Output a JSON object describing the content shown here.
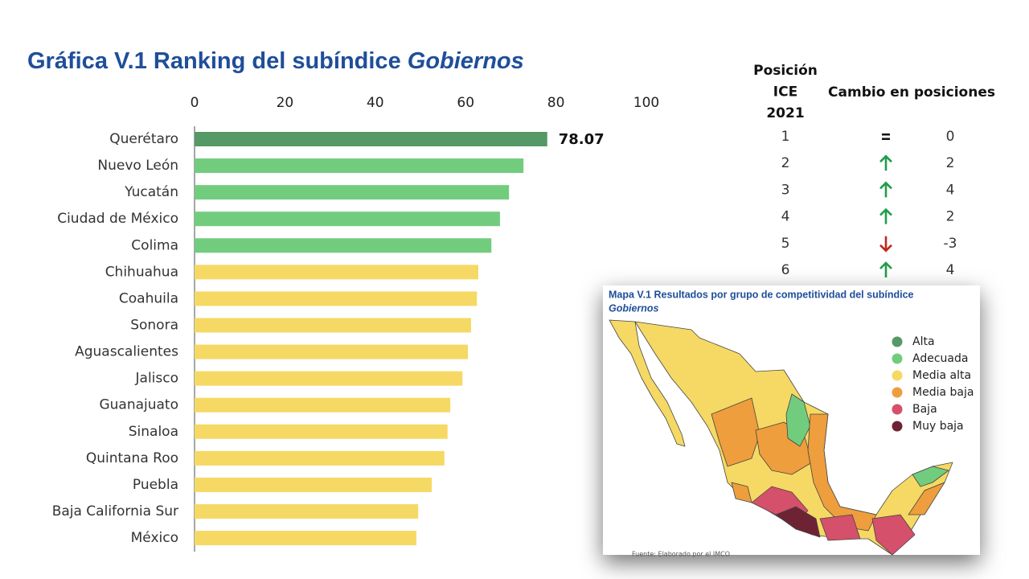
{
  "chart_data": {
    "type": "hbar",
    "title": "Gráfica V.1 Ranking del subíndice",
    "title_emphasis": "Gobiernos",
    "categories": [
      "Querétaro",
      "Nuevo León",
      "Yucatán",
      "Ciudad de México",
      "Colima",
      "Chihuahua",
      "Coahuila",
      "Sonora",
      "Aguascalientes",
      "Jalisco",
      "Guanajuato",
      "Sinaloa",
      "Quintana Roo",
      "Puebla",
      "Baja California Sur",
      "México"
    ],
    "values": [
      78.07,
      72.8,
      69.6,
      67.6,
      65.7,
      62.8,
      62.5,
      61.2,
      60.5,
      59.3,
      56.6,
      56.0,
      55.3,
      52.5,
      49.5,
      49.1
    ],
    "value_labels": [
      "78.07",
      null,
      null,
      null,
      null,
      null,
      null,
      null,
      null,
      null,
      null,
      null,
      null,
      null,
      null,
      null
    ],
    "colors": [
      "#559966",
      "#72cc7e",
      "#72cc7e",
      "#72cc7e",
      "#72cc7e",
      "#f5d964",
      "#f5d964",
      "#f5d964",
      "#f5d964",
      "#f5d964",
      "#f5d964",
      "#f5d964",
      "#f5d964",
      "#f5d964",
      "#f5d964",
      "#f5d964"
    ],
    "xlim": [
      0,
      100
    ],
    "xticks": [
      0,
      20,
      40,
      60,
      80,
      100
    ],
    "grid": false
  },
  "ranking_table": {
    "headers": [
      "Posición ICE 2021",
      "Cambio en posiciones"
    ],
    "rows": [
      [
        1,
        0
      ],
      [
        2,
        2
      ],
      [
        3,
        4
      ],
      [
        4,
        2
      ],
      [
        5,
        -3
      ],
      [
        6,
        4
      ]
    ]
  },
  "map": {
    "title": "Mapa V.1 Resultados por grupo de competitividad del subíndice",
    "title_emphasis": "Gobiernos",
    "legend": [
      {
        "name": "Alta",
        "color": "#559966"
      },
      {
        "name": "Adecuada",
        "color": "#72cc7e"
      },
      {
        "name": "Media alta",
        "color": "#f5d964"
      },
      {
        "name": "Media baja",
        "color": "#ee9e3c"
      },
      {
        "name": "Baja",
        "color": "#d5506a"
      },
      {
        "name": "Muy baja",
        "color": "#6e2334"
      }
    ],
    "source": "Fuente: Elaborado por el IMCO"
  }
}
